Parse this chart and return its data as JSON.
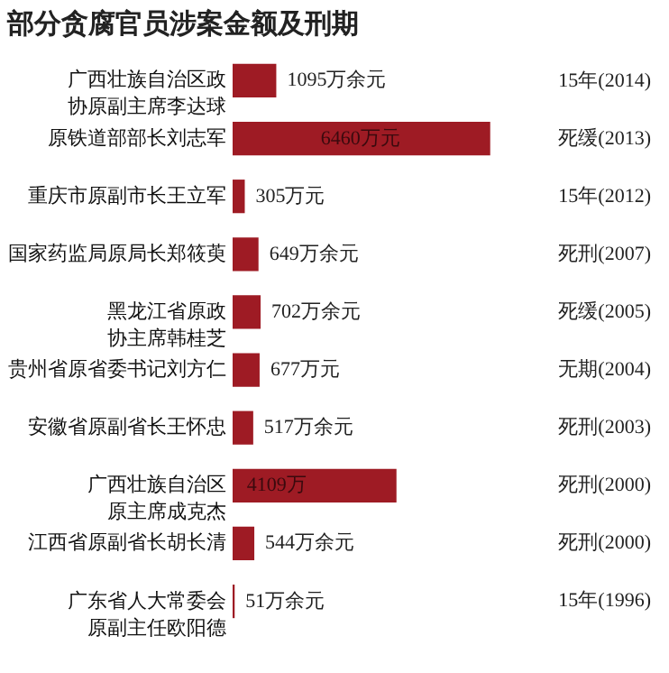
{
  "chart_data": {
    "type": "bar",
    "orientation": "horizontal",
    "title": "部分贪腐官员涉案金额及刑期",
    "categories": [
      "广西壮族自治区政协原副主席李达球",
      "原铁道部部长刘志军",
      "重庆市原副市长王立军",
      "国家药监局原局长郑筱萸",
      "黑龙江省原政协主席韩桂芝",
      "贵州省原省委书记刘方仁",
      "安徽省原副省长王怀忠",
      "广西壮族自治区原主席成克杰",
      "江西省原副省长胡长清",
      "广东省人大常委会原副主任欧阳德"
    ],
    "values": [
      1095,
      6460,
      305,
      649,
      702,
      677,
      517,
      4109,
      544,
      51
    ],
    "value_labels": [
      "1095万余元",
      "6460万元",
      "305万元",
      "649万余元",
      "702万余元",
      "677万元",
      "517万余元",
      "4109万",
      "544万余元",
      "51万余元"
    ],
    "color": "#9e1b24",
    "annotations": [
      "15年(2014)",
      "死缓(2013)",
      "15年(2012)",
      "死刑(2007)",
      "死缓(2005)",
      "无期(2004)",
      "死刑(2003)",
      "死刑(2000)",
      "死刑(2000)",
      "15年(1996)"
    ]
  }
}
